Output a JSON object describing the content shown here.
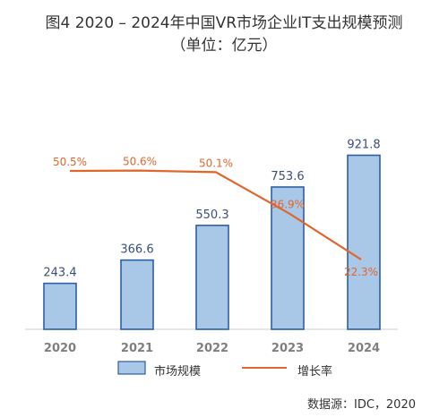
{
  "title_line1": "图4 2020 – 2024年中国VR市场企业IT支出规模预测",
  "title_line2": "（单位：亿元）",
  "source": "数据源：IDC，2020",
  "chart_data": {
    "type": "bar",
    "categories": [
      "2020",
      "2021",
      "2022",
      "2023",
      "2024"
    ],
    "series": [
      {
        "name": "市场规模",
        "type": "bar",
        "values": [
          243.4,
          366.6,
          550.3,
          753.6,
          921.8
        ],
        "labels": [
          "243.4",
          "366.6",
          "550.3",
          "753.6",
          "921.8"
        ]
      },
      {
        "name": "增长率",
        "type": "line",
        "values": [
          50.5,
          50.6,
          50.1,
          36.9,
          22.3
        ],
        "labels": [
          "50.5%",
          "50.6%",
          "50.1%",
          "36.9%",
          "22.3%"
        ]
      }
    ],
    "legend_position": "bottom",
    "grid": false,
    "colors": {
      "bar_fill": "#a9c8e8",
      "bar_stroke": "#2e5fa3",
      "line": "#e0662c",
      "bar_label": "#3a4f7a",
      "line_label": "#e0662c",
      "axis": "#cfcfcf",
      "tick_label": "#7f7f7f"
    }
  }
}
